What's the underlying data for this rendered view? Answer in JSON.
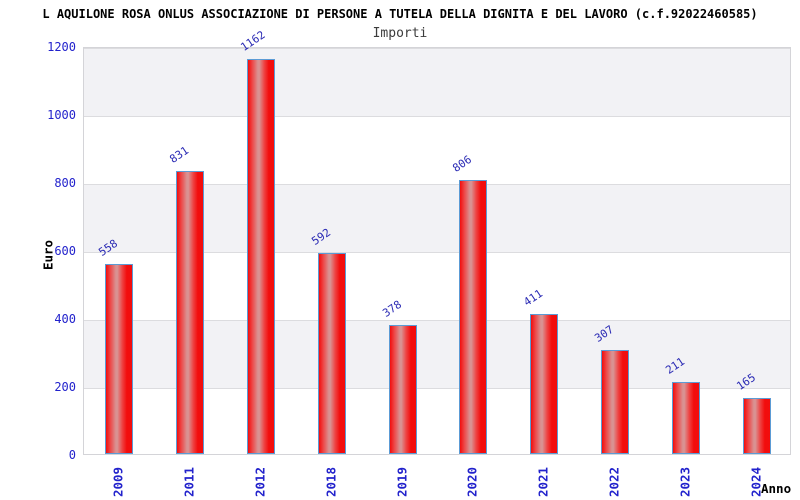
{
  "header": {
    "title": "L AQUILONE ROSA ONLUS ASSOCIAZIONE DI PERSONE A TUTELA DELLA DIGNITA E DEL LAVORO (c.f.92022460585)",
    "subtitle": "Importi"
  },
  "chart_data": {
    "type": "bar",
    "title": "Importi",
    "categories": [
      "2009",
      "2011",
      "2012",
      "2018",
      "2019",
      "2020",
      "2021",
      "2022",
      "2023",
      "2024"
    ],
    "values": [
      558,
      831,
      1162,
      592,
      378,
      806,
      411,
      307,
      211,
      165
    ],
    "xlabel": "Anno",
    "ylabel": "Euro",
    "ylim": [
      0,
      1200
    ],
    "yticks": [
      0,
      200,
      400,
      600,
      800,
      1000,
      1200
    ],
    "grid": "horizontal-bands",
    "legend": "none",
    "bar_labels_rotation_deg": -34,
    "x_labels_rotation_deg": -90
  },
  "colors": {
    "axis_text": "#2222cc",
    "value_label": "#2a2ab4",
    "title_text": "#000000",
    "subtitle_text": "#3c3c3c",
    "band_fill": "#f2f2f5",
    "gridline": "#dcdcdf",
    "plot_border": "#d4d4d8",
    "bar_fill_edge": "#f20d0d",
    "bar_fill_mid": "#ee4545",
    "bar_fill_highlight": "#d99292",
    "bar_border": "#5b9bd5",
    "background": "#ffffff"
  }
}
